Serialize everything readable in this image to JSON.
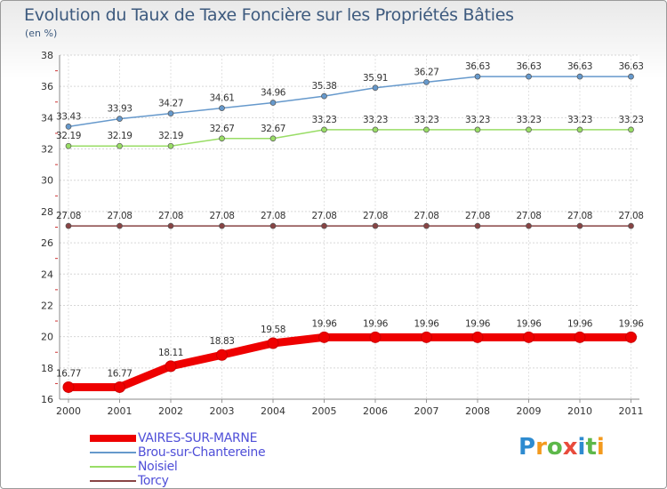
{
  "chart_data": {
    "type": "line",
    "title": "Evolution du Taux de Taxe Foncière sur les Propriétés Bâties",
    "unit_label": "(en %)",
    "xlabel": "",
    "ylabel": "",
    "ylim": [
      16,
      38
    ],
    "yticks": [
      16,
      18,
      20,
      22,
      24,
      26,
      28,
      30,
      32,
      34,
      36,
      38
    ],
    "categories": [
      "2000",
      "2001",
      "2002",
      "2003",
      "2004",
      "2005",
      "2006",
      "2007",
      "2008",
      "2009",
      "2010",
      "2011"
    ],
    "grid": "horizontal",
    "legend_position": "bottom-left",
    "series": [
      {
        "name": "VAIRES-SUR-MARNE",
        "color": "#ee0000",
        "values": [
          16.77,
          16.77,
          18.11,
          18.83,
          19.58,
          19.96,
          19.96,
          19.96,
          19.96,
          19.96,
          19.96,
          19.96
        ],
        "labels": [
          "16.77",
          "16.77",
          "18.11",
          "18.83",
          "19.58",
          "19.96",
          "19.96",
          "19.96",
          "19.96",
          "19.96",
          "19.96",
          "19.96"
        ]
      },
      {
        "name": "Brou-sur-Chantereine",
        "color": "#6699cc",
        "values": [
          33.43,
          33.93,
          34.27,
          34.61,
          34.96,
          35.38,
          35.91,
          36.27,
          36.63,
          36.63,
          36.63,
          36.63
        ],
        "labels": [
          "33.43",
          "33.93",
          "34.27",
          "34.61",
          "34.96",
          "35.38",
          "35.91",
          "36.27",
          "36.63",
          "36.63",
          "36.63",
          "36.63"
        ]
      },
      {
        "name": "Noisiel",
        "color": "#99dd66",
        "values": [
          32.19,
          32.19,
          32.19,
          32.67,
          32.67,
          33.23,
          33.23,
          33.23,
          33.23,
          33.23,
          33.23,
          33.23
        ],
        "labels": [
          "32.19",
          "32.19",
          "32.19",
          "32.67",
          "32.67",
          "33.23",
          "33.23",
          "33.23",
          "33.23",
          "33.23",
          "33.23",
          "33.23"
        ]
      },
      {
        "name": "Torcy",
        "color": "#884444",
        "values": [
          27.08,
          27.08,
          27.08,
          27.08,
          27.08,
          27.08,
          27.08,
          27.08,
          27.08,
          27.08,
          27.08,
          27.08
        ],
        "labels": [
          "27.08",
          "27.08",
          "27.08",
          "27.08",
          "27.08",
          "27.08",
          "27.08",
          "27.08",
          "27.08",
          "27.08",
          "27.08",
          "27.08"
        ]
      }
    ]
  },
  "logo": {
    "letters": [
      "P",
      "r",
      "o",
      "x",
      "i",
      "t",
      "i"
    ],
    "colors": [
      "#2e8bd0",
      "#f39a1e",
      "#5db84a",
      "#e84b3c",
      "#2e8bd0",
      "#5db84a",
      "#f39a1e"
    ]
  }
}
